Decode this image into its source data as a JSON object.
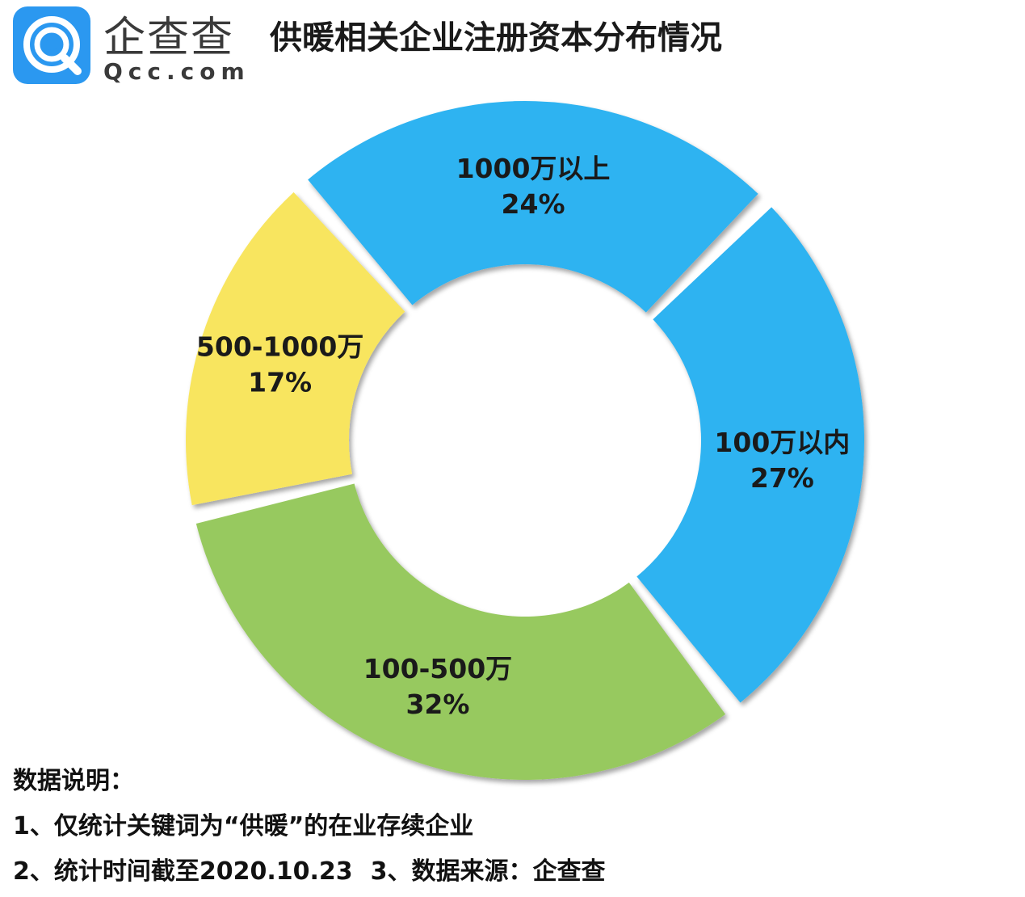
{
  "header": {
    "logo_brand": "企查查",
    "logo_domain": "Qcc.com",
    "title": "供暖相关企业注册资本分布情况"
  },
  "chart_data": {
    "type": "pie",
    "title": "供暖相关企业注册资本分布情况",
    "donut": true,
    "slices": [
      {
        "label": "100万以内",
        "value": 27,
        "value_label": "27%",
        "color": "#2db3f1"
      },
      {
        "label": "100-500万",
        "value": 32,
        "value_label": "32%",
        "color": "#97c95e"
      },
      {
        "label": "500-1000万",
        "value": 17,
        "value_label": "17%",
        "color": "#f8e55f"
      },
      {
        "label": "1000万以上",
        "value": 24,
        "value_label": "24%",
        "color": "#2db3f1"
      }
    ]
  },
  "notes": {
    "heading": "数据说明：",
    "line1": "1、仅统计关键词为“供暖”的在业存续企业",
    "line2a": "2、统计时间截至2020.10.23",
    "line2b": "3、数据来源：企查查"
  }
}
